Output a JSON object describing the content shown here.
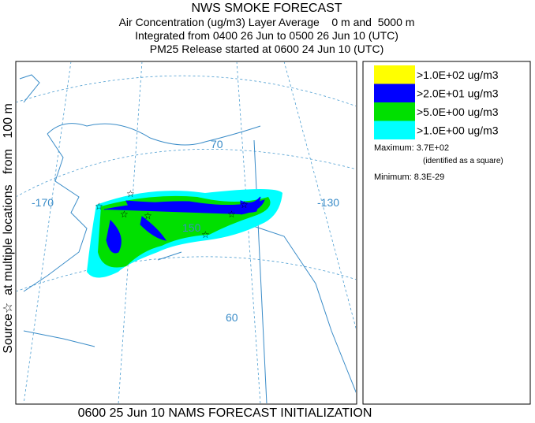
{
  "header": {
    "title": "NWS SMOKE FORECAST",
    "lines": [
      "Air Concentration (ug/m3) Layer Average    0 m and  5000 m",
      "Integrated from 0400 26 Jun to 0500 26 Jun 10 (UTC)",
      "PM25 Release started at 0600 24 Jun 10 (UTC)"
    ]
  },
  "side_label": "Source☆  at multiple locations   from   100 m",
  "map": {
    "grid_labels": [
      "-170",
      "-130",
      "70",
      "150",
      "60"
    ]
  },
  "legend": {
    "items": [
      {
        "label": ">1.0E+02 ug/m3",
        "color": "#ffff00"
      },
      {
        "label": ">2.0E+01 ug/m3",
        "color": "#0000ff"
      },
      {
        "label": ">5.0E+00 ug/m3",
        "color": "#00e000"
      },
      {
        "label": ">1.0E+00 ug/m3",
        "color": "#00ffff"
      }
    ]
  },
  "stats": {
    "maximum": "Maximum: 3.7E+02",
    "note": "(identified as a square)",
    "minimum": "Minimum: 8.3E-29"
  },
  "footer": "0600 25 Jun 10 NAMS FORECAST INITIALIZATION"
}
